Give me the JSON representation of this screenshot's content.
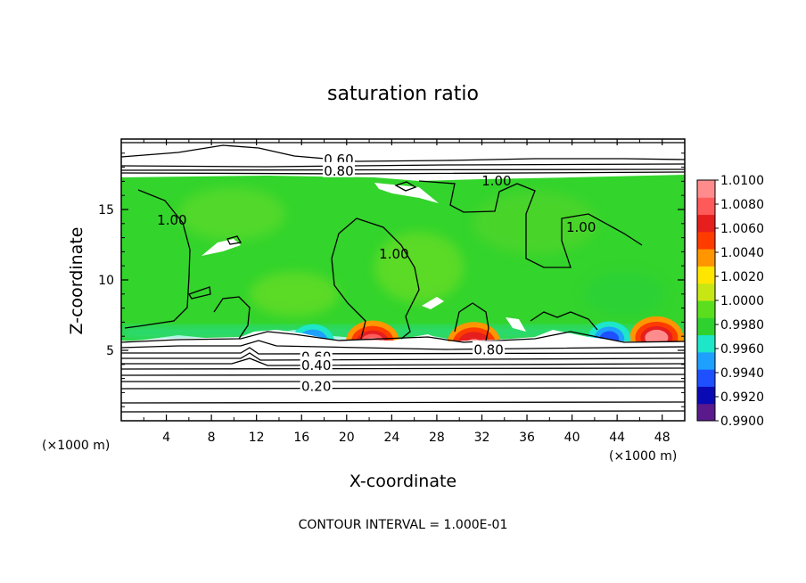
{
  "chart_data": {
    "type": "heatmap",
    "title": "saturation ratio",
    "xlabel": "X-coordinate",
    "ylabel": "Z-coordinate",
    "x_unit": "(×1000 m)",
    "footer": "CONTOUR INTERVAL = 1.000E-01",
    "xlim": [
      0,
      50
    ],
    "ylim": [
      0,
      20
    ],
    "x_ticks": [
      4,
      8,
      12,
      16,
      20,
      24,
      28,
      32,
      36,
      40,
      44,
      48
    ],
    "y_ticks": [
      5,
      10,
      15
    ],
    "colorbar": {
      "min": 0.99,
      "max": 1.01,
      "labels": [
        "1.0100",
        "1.0080",
        "1.0060",
        "1.0040",
        "1.0020",
        "1.0000",
        "0.9980",
        "0.9960",
        "0.9940",
        "0.9920",
        "0.9900"
      ],
      "colors": [
        "#5a1a8c",
        "#0a0ab4",
        "#1e50ff",
        "#1ea0ff",
        "#1ee6c8",
        "#2fd12f",
        "#5ade1e",
        "#c8e614",
        "#ffe600",
        "#ff9600",
        "#ff3c00",
        "#e61e1e",
        "#ff5a5a",
        "#ff8c8c"
      ]
    },
    "contour_labels": [
      {
        "text": "0.60",
        "x": 19.3,
        "z": 18.6
      },
      {
        "text": "0.80",
        "x": 19.3,
        "z": 17.8
      },
      {
        "text": "1.00",
        "x": 33.3,
        "z": 17.1
      },
      {
        "text": "1.00",
        "x": 4.5,
        "z": 14.3
      },
      {
        "text": "1.00",
        "x": 24.2,
        "z": 11.9
      },
      {
        "text": "1.00",
        "x": 40.8,
        "z": 13.8
      },
      {
        "text": "0.80",
        "x": 32.6,
        "z": 5.1
      },
      {
        "text": "0.60",
        "x": 17.3,
        "z": 4.6
      },
      {
        "text": "0.40",
        "x": 17.3,
        "z": 4.0
      },
      {
        "text": "0.20",
        "x": 17.3,
        "z": 2.5
      }
    ],
    "hotspots": [
      {
        "x": 22.3,
        "z": 6.1,
        "value": 1.008
      },
      {
        "x": 31.3,
        "z": 6.0,
        "value": 1.006
      },
      {
        "x": 47.5,
        "z": 6.4,
        "value": 1.009
      },
      {
        "x": 43.3,
        "z": 6.3,
        "value": 0.993
      },
      {
        "x": 17.0,
        "z": 6.1,
        "value": 0.995
      }
    ]
  }
}
